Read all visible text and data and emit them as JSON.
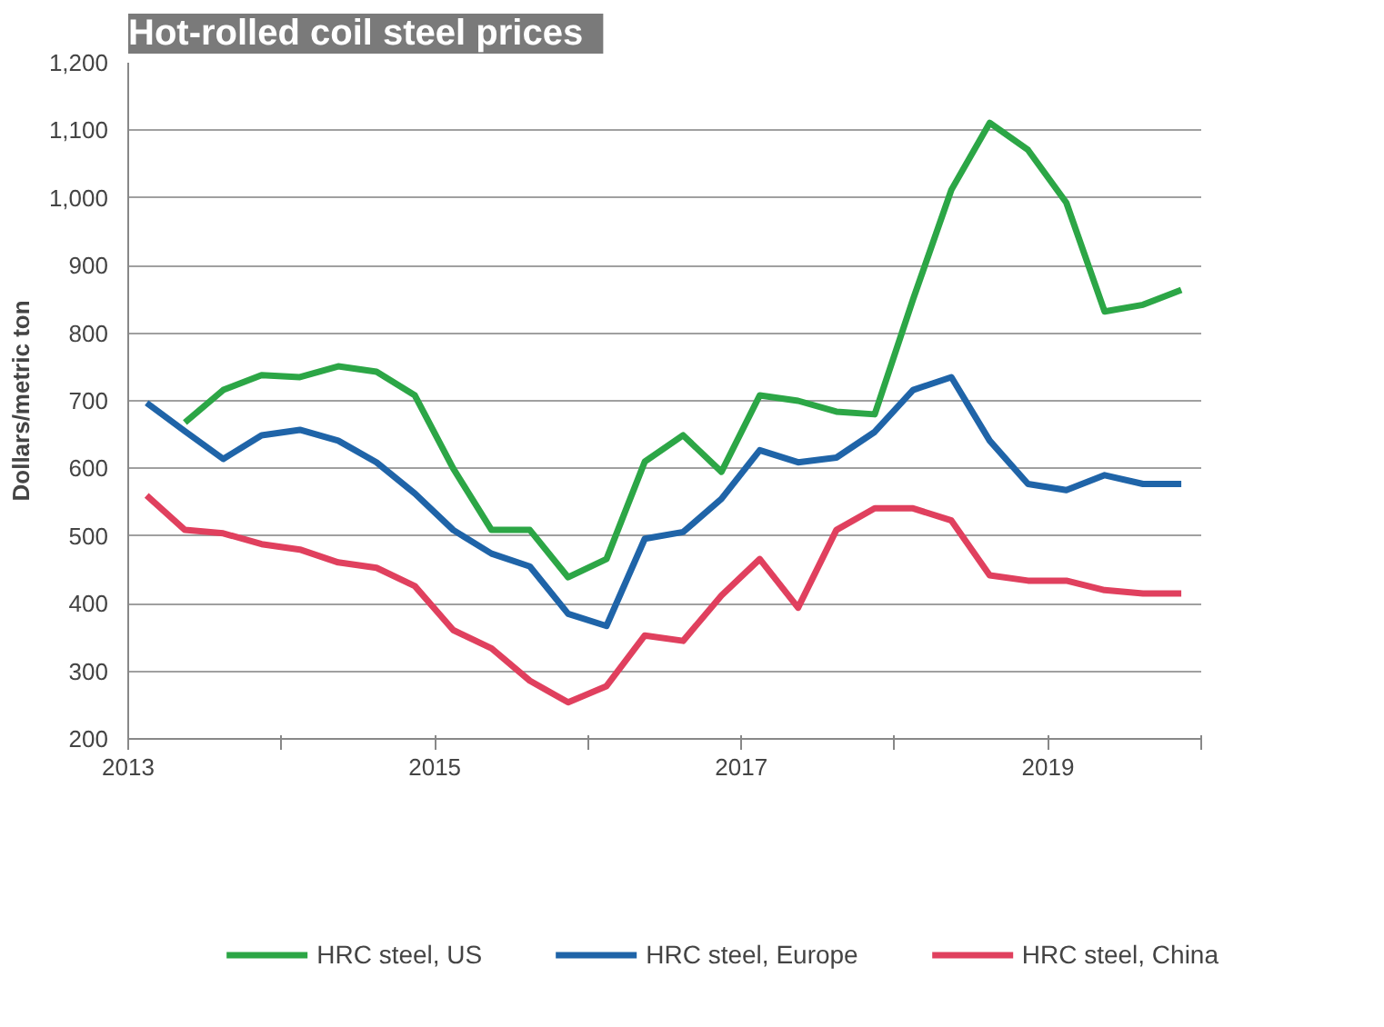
{
  "chart_data": {
    "type": "line",
    "title": "Hot-rolled coil steel prices",
    "ylabel": "Dollars/metric ton",
    "x": [
      2013.12,
      2013.37,
      2013.62,
      2013.87,
      2014.12,
      2014.37,
      2014.62,
      2014.87,
      2015.12,
      2015.37,
      2015.62,
      2015.87,
      2016.12,
      2016.37,
      2016.62,
      2016.87,
      2017.12,
      2017.37,
      2017.62,
      2017.87,
      2018.12,
      2018.37,
      2018.62,
      2018.87,
      2019.12,
      2019.37,
      2019.62,
      2019.87
    ],
    "series": [
      {
        "name": "HRC steel, US",
        "color": "#2ca646",
        "values": [
          null,
          668,
          716,
          738,
          735,
          751,
          743,
          708,
          600,
          509,
          509,
          439,
          466,
          610,
          649,
          595,
          708,
          700,
          684,
          680,
          850,
          1012,
          1111,
          1071,
          993,
          832,
          842,
          864
        ]
      },
      {
        "name": "HRC steel, Europe",
        "color": "#1f64a8",
        "values": [
          697,
          655,
          614,
          649,
          657,
          641,
          609,
          563,
          509,
          474,
          455,
          385,
          367,
          496,
          506,
          555,
          627,
          609,
          616,
          654,
          716,
          735,
          641,
          577,
          568,
          590,
          577,
          577
        ]
      },
      {
        "name": "HRC steel, China",
        "color": "#e0405e",
        "values": [
          560,
          509,
          504,
          488,
          480,
          461,
          453,
          426,
          361,
          334,
          286,
          254,
          278,
          353,
          345,
          412,
          466,
          394,
          509,
          541,
          541,
          523,
          442,
          434,
          434,
          420,
          415,
          415
        ]
      }
    ],
    "xlim": [
      2013,
      2020
    ],
    "xticks": [
      2013,
      {
        "value": 2014,
        "label": null
      },
      2015,
      {
        "value": 2016,
        "label": null
      },
      2017,
      {
        "value": 2018,
        "label": null
      },
      2019,
      {
        "value": 2020,
        "label": null
      }
    ],
    "ylim": [
      200,
      1200
    ],
    "yticks": [
      200,
      300,
      400,
      500,
      600,
      700,
      800,
      900,
      {
        "value": 1000,
        "label": "1,000"
      },
      {
        "value": 1100,
        "label": "1,100"
      },
      {
        "value": 1200,
        "label": "1,200"
      }
    ],
    "grid": "y",
    "legend": "bottom",
    "marker": "none",
    "line_style": "solid"
  }
}
